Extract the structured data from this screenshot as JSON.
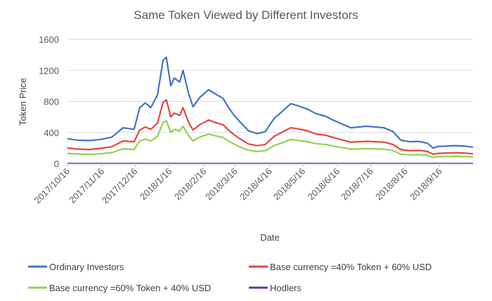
{
  "chart_data": {
    "type": "line",
    "title": "Same Token Viewed by Different Investors",
    "xlabel": "Date",
    "ylabel": "Token Price",
    "ylim": [
      0,
      1600
    ],
    "yticks": [
      "0",
      "400",
      "800",
      "1200",
      "1600"
    ],
    "xlim": [
      "2017/10/16",
      "2018/10/16"
    ],
    "xticks": [
      "2017/10/16",
      "2017/11/16",
      "2017/12/16",
      "2018/1/16",
      "2018/2/16",
      "2018/3/16",
      "2018/4/16",
      "2018/5/16",
      "2018/6/16",
      "2018/7/16",
      "2018/8/16",
      "2018/9/16"
    ],
    "grid": "horizontal",
    "legend_position": "bottom",
    "series": [
      {
        "name": "Ordinary Investors",
        "color": "#4472c4",
        "points": [
          [
            "2017/10/16",
            320
          ],
          [
            "2017/10/25",
            300
          ],
          [
            "2017/11/5",
            295
          ],
          [
            "2017/11/15",
            310
          ],
          [
            "2017/11/25",
            340
          ],
          [
            "2017/12/5",
            460
          ],
          [
            "2017/12/10",
            450
          ],
          [
            "2017/12/15",
            440
          ],
          [
            "2017/12/20",
            720
          ],
          [
            "2017/12/25",
            780
          ],
          [
            "2017/12/30",
            720
          ],
          [
            "2018/1/5",
            880
          ],
          [
            "2018/1/10",
            1330
          ],
          [
            "2018/1/13",
            1370
          ],
          [
            "2018/1/17",
            1000
          ],
          [
            "2018/1/20",
            1100
          ],
          [
            "2018/1/25",
            1050
          ],
          [
            "2018/1/28",
            1200
          ],
          [
            "2018/2/2",
            900
          ],
          [
            "2018/2/6",
            730
          ],
          [
            "2018/2/12",
            850
          ],
          [
            "2018/2/20",
            950
          ],
          [
            "2018/2/28",
            880
          ],
          [
            "2018/3/5",
            840
          ],
          [
            "2018/3/10",
            720
          ],
          [
            "2018/3/15",
            620
          ],
          [
            "2018/3/20",
            540
          ],
          [
            "2018/3/28",
            420
          ],
          [
            "2018/4/5",
            385
          ],
          [
            "2018/4/12",
            410
          ],
          [
            "2018/4/20",
            580
          ],
          [
            "2018/4/28",
            680
          ],
          [
            "2018/5/5",
            770
          ],
          [
            "2018/5/10",
            750
          ],
          [
            "2018/5/20",
            700
          ],
          [
            "2018/5/28",
            640
          ],
          [
            "2018/6/5",
            610
          ],
          [
            "2018/6/12",
            560
          ],
          [
            "2018/6/20",
            510
          ],
          [
            "2018/6/28",
            460
          ],
          [
            "2018/7/5",
            470
          ],
          [
            "2018/7/12",
            480
          ],
          [
            "2018/7/20",
            470
          ],
          [
            "2018/7/28",
            460
          ],
          [
            "2018/8/5",
            410
          ],
          [
            "2018/8/12",
            300
          ],
          [
            "2018/8/20",
            280
          ],
          [
            "2018/8/28",
            285
          ],
          [
            "2018/9/5",
            260
          ],
          [
            "2018/9/10",
            200
          ],
          [
            "2018/9/15",
            220
          ],
          [
            "2018/9/22",
            225
          ],
          [
            "2018/9/30",
            230
          ],
          [
            "2018/10/8",
            225
          ],
          [
            "2018/10/16",
            210
          ]
        ]
      },
      {
        "name": "Base currency =40% Token + 60% USD",
        "color": "#e8453c",
        "points": [
          [
            "2017/10/16",
            200
          ],
          [
            "2017/10/25",
            185
          ],
          [
            "2017/11/5",
            180
          ],
          [
            "2017/11/15",
            195
          ],
          [
            "2017/11/25",
            215
          ],
          [
            "2017/12/5",
            290
          ],
          [
            "2017/12/10",
            285
          ],
          [
            "2017/12/15",
            280
          ],
          [
            "2017/12/20",
            430
          ],
          [
            "2017/12/25",
            470
          ],
          [
            "2017/12/30",
            440
          ],
          [
            "2018/1/5",
            520
          ],
          [
            "2018/1/10",
            790
          ],
          [
            "2018/1/13",
            820
          ],
          [
            "2018/1/17",
            600
          ],
          [
            "2018/1/20",
            650
          ],
          [
            "2018/1/25",
            620
          ],
          [
            "2018/1/28",
            720
          ],
          [
            "2018/2/2",
            530
          ],
          [
            "2018/2/6",
            430
          ],
          [
            "2018/2/12",
            500
          ],
          [
            "2018/2/20",
            560
          ],
          [
            "2018/2/28",
            520
          ],
          [
            "2018/3/5",
            500
          ],
          [
            "2018/3/10",
            430
          ],
          [
            "2018/3/15",
            370
          ],
          [
            "2018/3/20",
            320
          ],
          [
            "2018/3/28",
            250
          ],
          [
            "2018/4/5",
            230
          ],
          [
            "2018/4/12",
            245
          ],
          [
            "2018/4/20",
            350
          ],
          [
            "2018/4/28",
            410
          ],
          [
            "2018/5/5",
            460
          ],
          [
            "2018/5/10",
            450
          ],
          [
            "2018/5/20",
            420
          ],
          [
            "2018/5/28",
            380
          ],
          [
            "2018/6/5",
            365
          ],
          [
            "2018/6/12",
            335
          ],
          [
            "2018/6/20",
            305
          ],
          [
            "2018/6/28",
            275
          ],
          [
            "2018/7/5",
            280
          ],
          [
            "2018/7/12",
            285
          ],
          [
            "2018/7/20",
            280
          ],
          [
            "2018/7/28",
            275
          ],
          [
            "2018/8/5",
            245
          ],
          [
            "2018/8/12",
            180
          ],
          [
            "2018/8/20",
            165
          ],
          [
            "2018/8/28",
            170
          ],
          [
            "2018/9/5",
            155
          ],
          [
            "2018/9/10",
            120
          ],
          [
            "2018/9/15",
            130
          ],
          [
            "2018/9/22",
            135
          ],
          [
            "2018/9/30",
            138
          ],
          [
            "2018/10/8",
            135
          ],
          [
            "2018/10/16",
            125
          ]
        ]
      },
      {
        "name": "Base currency =60% Token + 40% USD",
        "color": "#92d050",
        "points": [
          [
            "2017/10/16",
            130
          ],
          [
            "2017/10/25",
            122
          ],
          [
            "2017/11/5",
            118
          ],
          [
            "2017/11/15",
            125
          ],
          [
            "2017/11/25",
            140
          ],
          [
            "2017/12/5",
            190
          ],
          [
            "2017/12/10",
            185
          ],
          [
            "2017/12/15",
            180
          ],
          [
            "2017/12/20",
            290
          ],
          [
            "2017/12/25",
            315
          ],
          [
            "2017/12/30",
            290
          ],
          [
            "2018/1/5",
            350
          ],
          [
            "2018/1/10",
            530
          ],
          [
            "2018/1/13",
            550
          ],
          [
            "2018/1/17",
            400
          ],
          [
            "2018/1/20",
            440
          ],
          [
            "2018/1/25",
            420
          ],
          [
            "2018/1/28",
            480
          ],
          [
            "2018/2/2",
            360
          ],
          [
            "2018/2/6",
            290
          ],
          [
            "2018/2/12",
            340
          ],
          [
            "2018/2/20",
            380
          ],
          [
            "2018/2/28",
            350
          ],
          [
            "2018/3/5",
            335
          ],
          [
            "2018/3/10",
            290
          ],
          [
            "2018/3/15",
            250
          ],
          [
            "2018/3/20",
            215
          ],
          [
            "2018/3/28",
            170
          ],
          [
            "2018/4/5",
            155
          ],
          [
            "2018/4/12",
            165
          ],
          [
            "2018/4/20",
            230
          ],
          [
            "2018/4/28",
            270
          ],
          [
            "2018/5/5",
            310
          ],
          [
            "2018/5/10",
            300
          ],
          [
            "2018/5/20",
            280
          ],
          [
            "2018/5/28",
            255
          ],
          [
            "2018/6/5",
            245
          ],
          [
            "2018/6/12",
            225
          ],
          [
            "2018/6/20",
            205
          ],
          [
            "2018/6/28",
            185
          ],
          [
            "2018/7/5",
            188
          ],
          [
            "2018/7/12",
            192
          ],
          [
            "2018/7/20",
            188
          ],
          [
            "2018/7/28",
            184
          ],
          [
            "2018/8/5",
            165
          ],
          [
            "2018/8/12",
            120
          ],
          [
            "2018/8/20",
            110
          ],
          [
            "2018/8/28",
            114
          ],
          [
            "2018/9/5",
            104
          ],
          [
            "2018/9/10",
            80
          ],
          [
            "2018/9/15",
            88
          ],
          [
            "2018/9/22",
            90
          ],
          [
            "2018/9/30",
            92
          ],
          [
            "2018/10/8",
            90
          ],
          [
            "2018/10/16",
            84
          ]
        ]
      },
      {
        "name": "Hodlers",
        "color": "#7030a0",
        "points": [
          [
            "2017/10/16",
            1
          ],
          [
            "2018/10/16",
            1
          ]
        ]
      }
    ]
  }
}
